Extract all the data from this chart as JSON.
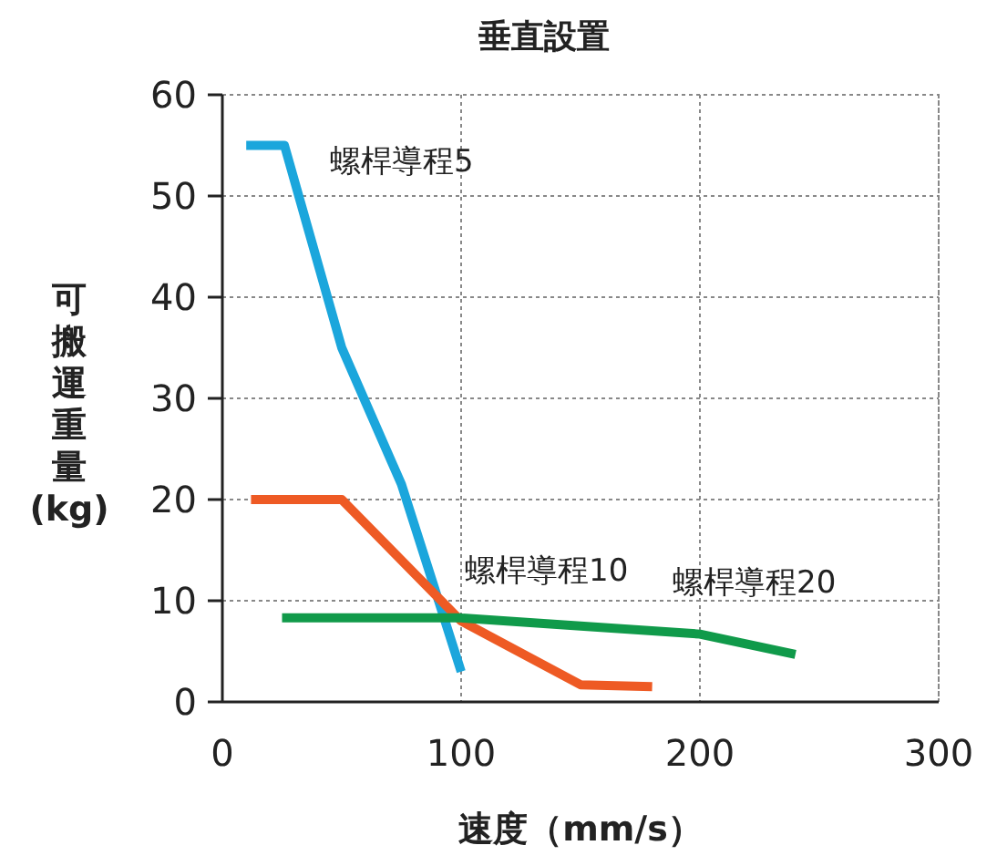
{
  "chart_data": {
    "type": "line",
    "title": "垂直設置",
    "xlabel": "速度（mm/s）",
    "ylabel": "可搬運重量(kg)",
    "xlim": [
      0,
      300
    ],
    "xticks": [
      0,
      100,
      200,
      300
    ],
    "ylim": [
      0,
      60
    ],
    "yticks": [
      0,
      10,
      20,
      30,
      40,
      50,
      60
    ],
    "grid": true,
    "line_style": "solid",
    "marker": "none",
    "series": [
      {
        "name": "螺桿導程5",
        "color": "#1ba6dc",
        "x": [
          10,
          26,
          50,
          75,
          100
        ],
        "values": [
          55,
          55,
          35,
          21.5,
          3
        ]
      },
      {
        "name": "螺桿導程10",
        "color": "#ee5a24",
        "x": [
          12,
          50,
          100,
          150,
          180
        ],
        "values": [
          20,
          20,
          8,
          1.7,
          1.5
        ]
      },
      {
        "name": "螺桿導程20",
        "color": "#109a4a",
        "x": [
          25,
          100,
          150,
          200,
          240
        ],
        "values": [
          8.3,
          8.3,
          7.5,
          6.7,
          4.7
        ]
      }
    ]
  }
}
